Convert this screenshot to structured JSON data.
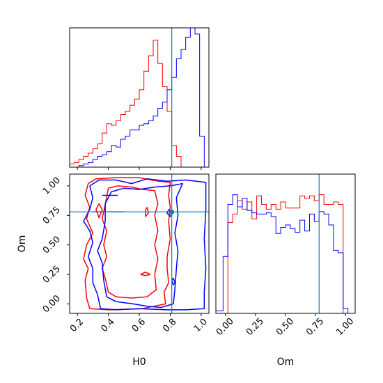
{
  "colors": {
    "red": "#ff0000",
    "blue": "#0000ff",
    "truth": "#1f77b4"
  },
  "labels": {
    "h0": "H0",
    "om": "Om"
  },
  "chart_data": [
    {
      "type": "histogram",
      "panel": "H0 marginal (top-left)",
      "x_range": [
        0.15,
        1.05
      ],
      "edges": [
        0.15,
        0.18,
        0.21,
        0.24,
        0.27,
        0.3,
        0.33,
        0.36,
        0.39,
        0.42,
        0.45,
        0.48,
        0.51,
        0.54,
        0.57,
        0.6,
        0.63,
        0.66,
        0.69,
        0.72,
        0.75,
        0.78,
        0.81,
        0.84,
        0.87,
        0.9,
        0.93,
        0.96,
        0.99,
        1.02,
        1.05
      ],
      "series": [
        {
          "color": "red",
          "values": [
            0.02,
            0.03,
            0.05,
            0.07,
            0.09,
            0.12,
            0.15,
            0.22,
            0.28,
            0.27,
            0.3,
            0.34,
            0.36,
            0.4,
            0.44,
            0.5,
            0.62,
            0.72,
            0.82,
            0.67,
            0.52,
            0.36,
            0.14,
            0.07,
            0,
            0,
            0,
            0,
            0,
            0
          ]
        },
        {
          "color": "blue",
          "values": [
            0,
            0,
            0.01,
            0.02,
            0.03,
            0.05,
            0.07,
            0.08,
            0.1,
            0.14,
            0.13,
            0.18,
            0.2,
            0.24,
            0.24,
            0.27,
            0.28,
            0.3,
            0.33,
            0.38,
            0.42,
            0.5,
            0.58,
            0.7,
            0.76,
            0.84,
            0.9,
            0.86,
            0.2,
            0
          ]
        }
      ],
      "truth_x": 0.81
    },
    {
      "type": "contour",
      "panel": "H0 vs Om (bottom-left)",
      "xlabel": "H0",
      "ylabel": "Om",
      "x_ticks": [
        0.2,
        0.4,
        0.6,
        0.8,
        1.0
      ],
      "y_ticks": [
        0.0,
        0.25,
        0.5,
        0.75,
        1.0
      ],
      "x_tick_labels": [
        "0.2",
        "0.4",
        "0.6",
        "0.8",
        "1.0"
      ],
      "y_tick_labels": [
        "0.00",
        "0.25",
        "0.50",
        "0.75",
        "1.00"
      ],
      "truth": {
        "x": 0.81,
        "y": 0.78
      },
      "series": [
        {
          "color": "red",
          "contours": [
            [
              [
                0.27,
                1.02
              ],
              [
                0.32,
                1.06
              ],
              [
                0.45,
                1.07
              ],
              [
                0.6,
                1.07
              ],
              [
                0.72,
                1.04
              ],
              [
                0.8,
                1.03
              ],
              [
                0.79,
                0.92
              ],
              [
                0.8,
                0.82
              ],
              [
                0.79,
                0.7
              ],
              [
                0.8,
                0.55
              ],
              [
                0.78,
                0.4
              ],
              [
                0.78,
                0.3
              ],
              [
                0.79,
                0.18
              ],
              [
                0.76,
                0.1
              ],
              [
                0.77,
                0.0
              ],
              [
                0.62,
                -0.04
              ],
              [
                0.4,
                -0.05
              ],
              [
                0.28,
                -0.04
              ],
              [
                0.26,
                0.05
              ],
              [
                0.25,
                0.2
              ],
              [
                0.27,
                0.3
              ],
              [
                0.24,
                0.38
              ],
              [
                0.26,
                0.5
              ],
              [
                0.3,
                0.6
              ],
              [
                0.26,
                0.72
              ],
              [
                0.28,
                0.82
              ],
              [
                0.25,
                0.92
              ],
              [
                0.27,
                1.02
              ]
            ],
            [
              [
                0.4,
                0.98
              ],
              [
                0.46,
                1.0
              ],
              [
                0.55,
                0.99
              ],
              [
                0.62,
                0.97
              ],
              [
                0.7,
                0.96
              ],
              [
                0.72,
                0.85
              ],
              [
                0.7,
                0.75
              ],
              [
                0.72,
                0.62
              ],
              [
                0.7,
                0.5
              ],
              [
                0.72,
                0.38
              ],
              [
                0.7,
                0.25
              ],
              [
                0.71,
                0.12
              ],
              [
                0.65,
                0.06
              ],
              [
                0.55,
                0.05
              ],
              [
                0.45,
                0.06
              ],
              [
                0.4,
                0.1
              ],
              [
                0.38,
                0.22
              ],
              [
                0.36,
                0.3
              ],
              [
                0.39,
                0.4
              ],
              [
                0.37,
                0.5
              ],
              [
                0.39,
                0.62
              ],
              [
                0.36,
                0.72
              ],
              [
                0.38,
                0.84
              ],
              [
                0.4,
                0.98
              ]
            ],
            [
              [
                0.34,
                0.85
              ],
              [
                0.36,
                0.8
              ],
              [
                0.34,
                0.73
              ],
              [
                0.32,
                0.8
              ],
              [
                0.34,
                0.85
              ]
            ],
            [
              [
                0.64,
                0.27
              ],
              [
                0.67,
                0.25
              ],
              [
                0.64,
                0.24
              ],
              [
                0.61,
                0.25
              ],
              [
                0.64,
                0.27
              ]
            ],
            [
              [
                0.65,
                0.82
              ],
              [
                0.66,
                0.77
              ],
              [
                0.64,
                0.74
              ],
              [
                0.64,
                0.79
              ],
              [
                0.65,
                0.82
              ]
            ]
          ]
        },
        {
          "color": "blue",
          "contours": [
            [
              [
                0.28,
                1.0
              ],
              [
                0.34,
                1.05
              ],
              [
                0.45,
                1.05
              ],
              [
                0.55,
                1.02
              ],
              [
                0.65,
                1.06
              ],
              [
                0.78,
                1.04
              ],
              [
                0.9,
                1.05
              ],
              [
                1.03,
                1.03
              ],
              [
                1.03,
                0.8
              ],
              [
                1.02,
                0.55
              ],
              [
                1.03,
                0.3
              ],
              [
                1.02,
                0.1
              ],
              [
                1.02,
                -0.04
              ],
              [
                0.9,
                -0.05
              ],
              [
                0.78,
                -0.05
              ],
              [
                0.6,
                -0.04
              ],
              [
                0.45,
                -0.05
              ],
              [
                0.35,
                -0.04
              ],
              [
                0.33,
                0.08
              ],
              [
                0.3,
                0.18
              ],
              [
                0.3,
                0.3
              ],
              [
                0.27,
                0.4
              ],
              [
                0.3,
                0.52
              ],
              [
                0.28,
                0.62
              ],
              [
                0.24,
                0.7
              ],
              [
                0.28,
                0.8
              ],
              [
                0.3,
                0.9
              ],
              [
                0.28,
                1.0
              ]
            ],
            [
              [
                0.8,
                1.0
              ],
              [
                0.88,
                1.02
              ],
              [
                0.84,
                0.9
              ],
              [
                0.85,
                0.75
              ],
              [
                0.83,
                0.6
              ],
              [
                0.85,
                0.45
              ],
              [
                0.84,
                0.3
              ],
              [
                0.83,
                0.12
              ],
              [
                0.82,
                0.0
              ],
              [
                0.74,
                -0.03
              ],
              [
                0.65,
                -0.02
              ],
              [
                0.56,
                0.0
              ],
              [
                0.45,
                0.02
              ],
              [
                0.39,
                0.06
              ],
              [
                0.37,
                0.2
              ],
              [
                0.36,
                0.35
              ],
              [
                0.33,
                0.45
              ],
              [
                0.36,
                0.55
              ],
              [
                0.38,
                0.7
              ],
              [
                0.38,
                0.85
              ],
              [
                0.42,
                0.95
              ],
              [
                0.5,
                0.98
              ],
              [
                0.6,
                0.97
              ],
              [
                0.7,
                0.99
              ],
              [
                0.8,
                1.0
              ]
            ],
            [
              [
                0.36,
                0.92
              ],
              [
                0.46,
                0.92
              ]
            ],
            [
              [
                0.3,
                0.78
              ],
              [
                0.5,
                0.78
              ]
            ],
            [
              [
                0.82,
                0.22
              ],
              [
                0.83,
                0.18
              ],
              [
                0.82,
                0.16
              ],
              [
                0.81,
                0.2
              ],
              [
                0.82,
                0.22
              ]
            ],
            [
              [
                0.79,
                0.8
              ],
              [
                0.82,
                0.78
              ],
              [
                0.8,
                0.74
              ],
              [
                0.78,
                0.77
              ],
              [
                0.79,
                0.8
              ]
            ]
          ]
        }
      ]
    },
    {
      "type": "histogram",
      "panel": "Om marginal (bottom-right)",
      "xlabel": "Om",
      "x_range": [
        -0.08,
        1.08
      ],
      "x_ticks": [
        0.0,
        0.25,
        0.5,
        0.75,
        1.0
      ],
      "x_tick_labels": [
        "0.00",
        "0.25",
        "0.50",
        "0.75",
        "1.00"
      ],
      "edges": [
        -0.08,
        -0.02,
        0.02,
        0.06,
        0.1,
        0.14,
        0.18,
        0.22,
        0.26,
        0.3,
        0.34,
        0.38,
        0.42,
        0.46,
        0.5,
        0.54,
        0.58,
        0.62,
        0.66,
        0.7,
        0.74,
        0.78,
        0.82,
        0.86,
        0.9,
        0.94,
        0.98,
        1.02,
        1.08
      ],
      "series": [
        {
          "color": "red",
          "values": [
            0,
            0,
            0.75,
            0.82,
            0.93,
            0.86,
            0.92,
            0.78,
            0.97,
            0.9,
            0.86,
            0.9,
            0.86,
            0.92,
            0.87,
            0.87,
            0.87,
            0.97,
            0.95,
            0.97,
            0.93,
            0.98,
            0.9,
            0.9,
            0.92,
            0.9,
            0,
            0
          ]
        },
        {
          "color": "blue",
          "values": [
            0.02,
            0.47,
            0.9,
            0.98,
            0.88,
            0.95,
            0.85,
            0.83,
            0.82,
            0.82,
            0.83,
            0.8,
            0.66,
            0.71,
            0.73,
            0.7,
            0.67,
            0.77,
            0.68,
            0.82,
            0.76,
            0.84,
            0.82,
            0.73,
            0.52,
            0.5,
            0.04,
            0
          ]
        }
      ],
      "truth_x": 0.78
    }
  ]
}
